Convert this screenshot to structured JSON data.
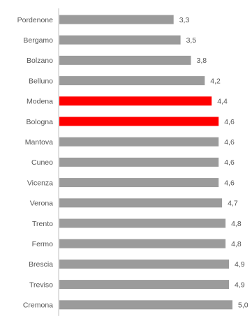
{
  "chart_data": {
    "type": "bar",
    "orientation": "horizontal",
    "categories": [
      "Pordenone",
      "Bergamo",
      "Bolzano",
      "Belluno",
      "Modena",
      "Bologna",
      "Mantova",
      "Cuneo",
      "Vicenza",
      "Verona",
      "Trento",
      "Fermo",
      "Brescia",
      "Treviso",
      "Cremona"
    ],
    "values": [
      3.3,
      3.5,
      3.8,
      4.2,
      4.4,
      4.6,
      4.6,
      4.6,
      4.6,
      4.7,
      4.8,
      4.8,
      4.9,
      4.9,
      5.0
    ],
    "value_labels": [
      "3,3",
      "3,5",
      "3,8",
      "4,2",
      "4,4",
      "4,6",
      "4,6",
      "4,6",
      "4,6",
      "4,7",
      "4,8",
      "4,8",
      "4,9",
      "4,9",
      "5,0"
    ],
    "highlighted": [
      "Modena",
      "Bologna"
    ],
    "xlim": [
      0,
      5.0
    ],
    "grid": false,
    "title": "",
    "xlabel": "",
    "ylabel": "",
    "colors": {
      "default_bar": "#9b9b9b",
      "highlight_bar": "#ff0000",
      "axis": "#bfbfbf",
      "text": "#555555"
    }
  }
}
